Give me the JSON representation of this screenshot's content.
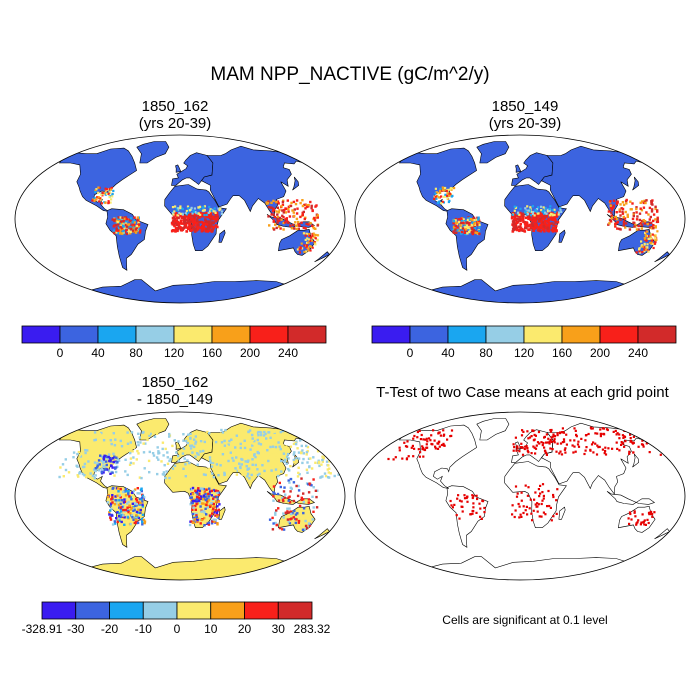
{
  "figure": {
    "title": "MAM NPP_NACTIVE (gC/m^2/y)"
  },
  "panels": [
    {
      "id": "case1",
      "title_line1": "1850_162",
      "title_line2": "(yrs 20-39)"
    },
    {
      "id": "case2",
      "title_line1": "1850_149",
      "title_line2": "(yrs 20-39)"
    },
    {
      "id": "diff",
      "title_line1": "1850_162",
      "title_line2": "- 1850_149"
    },
    {
      "id": "ttest",
      "title_line1": "T-Test of two Case means at each grid point",
      "title_line2": ""
    }
  ],
  "colorbars": {
    "abs": {
      "labels": [
        "0",
        "40",
        "80",
        "120",
        "160",
        "200",
        "240"
      ],
      "colors": [
        "#3a1cf0",
        "#3c64e0",
        "#1aa6f0",
        "#96cee6",
        "#fbea6e",
        "#f8a01a",
        "#f8201a",
        "#d22a2a"
      ]
    },
    "diff": {
      "labels": [
        "-328.91",
        "-30",
        "-20",
        "-10",
        "0",
        "10",
        "20",
        "30",
        "283.32"
      ],
      "colors": [
        "#3a1cf0",
        "#3c64e0",
        "#1aa6f0",
        "#96cee6",
        "#fbea6e",
        "#f8a01a",
        "#f8201a",
        "#d22a2a"
      ]
    }
  },
  "significance_note": "Cells are significant at 0.1 level",
  "map_colors": {
    "ocean": "#ffffff",
    "land_abs": "#3c64e0",
    "land_diff": "#fbea6e",
    "significant": "#e60000",
    "outline": "#000000"
  }
}
